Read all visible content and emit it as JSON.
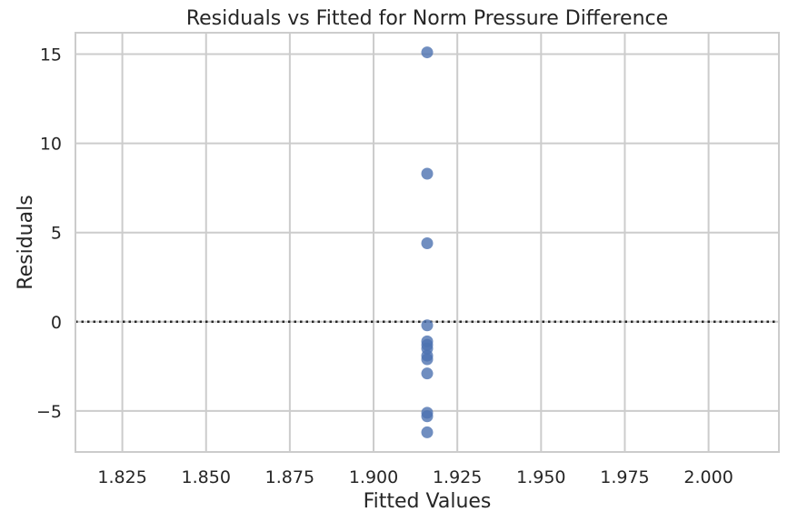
{
  "chart_data": {
    "type": "scatter",
    "title": "Residuals vs Fitted for Norm Pressure Difference",
    "xlabel": "Fitted Values",
    "ylabel": "Residuals",
    "xlim": [
      1.811,
      2.021
    ],
    "ylim": [
      -7.3,
      16.2
    ],
    "xticks": [
      1.825,
      1.85,
      1.875,
      1.9,
      1.925,
      1.95,
      1.975,
      2.0
    ],
    "xtick_labels": [
      "1.825",
      "1.850",
      "1.875",
      "1.900",
      "1.925",
      "1.950",
      "1.975",
      "2.000"
    ],
    "yticks": [
      15,
      10,
      5,
      0,
      -5
    ],
    "ytick_labels": [
      "15",
      "10",
      "5",
      "0",
      "−5"
    ],
    "grid": true,
    "reference_line": {
      "y": 0,
      "style": "dotted",
      "color": "#262626"
    },
    "point_color": "#4c72b0",
    "points": [
      {
        "x": 1.916,
        "y": 15.1
      },
      {
        "x": 1.916,
        "y": 8.3
      },
      {
        "x": 1.916,
        "y": 4.4
      },
      {
        "x": 1.916,
        "y": -0.2
      },
      {
        "x": 1.916,
        "y": -1.1
      },
      {
        "x": 1.916,
        "y": -1.3
      },
      {
        "x": 1.916,
        "y": -1.5
      },
      {
        "x": 1.916,
        "y": -1.9
      },
      {
        "x": 1.916,
        "y": -2.1
      },
      {
        "x": 1.916,
        "y": -2.9
      },
      {
        "x": 1.916,
        "y": -5.1
      },
      {
        "x": 1.916,
        "y": -5.3
      },
      {
        "x": 1.916,
        "y": -6.2
      }
    ]
  }
}
